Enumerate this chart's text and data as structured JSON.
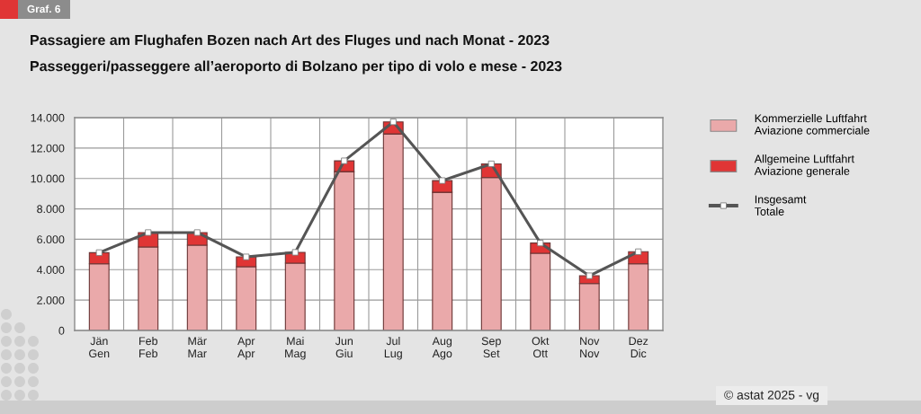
{
  "chart_data": {
    "type": "bar",
    "stacked": true,
    "title": "Passagiere am Flughafen Bozen nach Art des Fluges und nach Monat - 2023",
    "subtitle": "Passeggeri/passeggere all’aeroporto di Bolzano per tipo di volo e mese - 2023",
    "categories": [
      "Jän\nGen",
      "Feb\nFeb",
      "Mär\nMar",
      "Apr\nApr",
      "Mai\nMag",
      "Jun\nGiu",
      "Jul\nLug",
      "Aug\nAgo",
      "Sep\nSet",
      "Okt\nOtt",
      "Nov\nNov",
      "Dez\nDic"
    ],
    "series": [
      {
        "name": "Kommerzielle Luftfahrt\nAviazione commerciale",
        "color": "#eaa9aa",
        "values": [
          4390,
          5490,
          5610,
          4190,
          4430,
          10450,
          12930,
          9090,
          10060,
          5080,
          3090,
          4390
        ]
      },
      {
        "name": "Allgemeine Luftfahrt\nAviazione generale",
        "color": "#e03535",
        "values": [
          730,
          950,
          830,
          650,
          710,
          710,
          790,
          770,
          900,
          670,
          510,
          790
        ]
      },
      {
        "name": "Insgesamt\nTotale",
        "type": "line",
        "color": "#555555",
        "values": [
          5120,
          6440,
          6440,
          4840,
          5140,
          11160,
          13720,
          9860,
          10960,
          5750,
          3600,
          5180
        ]
      }
    ],
    "ylim": [
      0,
      14000
    ],
    "yticks": [
      0,
      {
        "value": 2000,
        "label": "2.000"
      },
      {
        "value": 4000,
        "label": "4.000"
      },
      {
        "value": 6000,
        "label": "6.000"
      },
      {
        "value": 8000,
        "label": "8.000"
      },
      {
        "value": 10000,
        "label": "10.000"
      },
      {
        "value": 12000,
        "label": "12.000"
      },
      {
        "value": 14000,
        "label": "14.000"
      }
    ],
    "grid": true,
    "legend": "right",
    "marker": "square",
    "line_style": "solid",
    "annotations": [
      "Graf. 6",
      "© astat 2025 - vg"
    ]
  }
}
